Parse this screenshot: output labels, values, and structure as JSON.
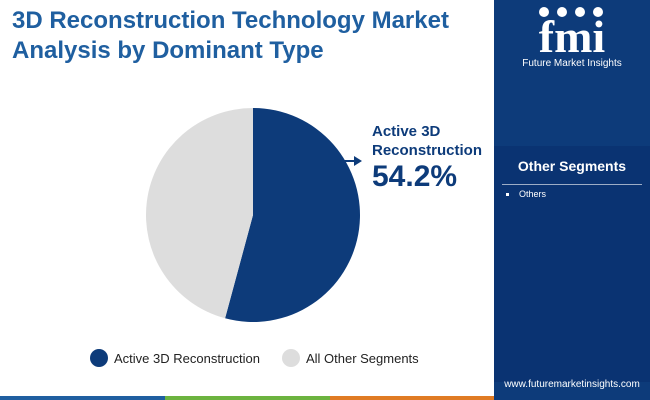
{
  "title_lines": [
    "3D Reconstruction Technology Market",
    "Analysis by Dominant Type"
  ],
  "chart_data": {
    "type": "pie",
    "slices": [
      {
        "label": "Active 3D Reconstruction",
        "value": 54.2,
        "color": "#0d3b7a"
      },
      {
        "label": "All Other Segments",
        "value": 45.8,
        "color": "#dddddd"
      }
    ],
    "callout": {
      "label_lines": [
        "Active 3D",
        "Reconstruction"
      ],
      "value": "54.2%"
    }
  },
  "legend": [
    {
      "label": "Active 3D Reconstruction",
      "color": "#0d3b7a"
    },
    {
      "label": "All Other Segments",
      "color": "#dddddd"
    }
  ],
  "sidebar": {
    "brand": "Future Market Insights",
    "logo_letters": "fmi",
    "segments_title": "Other Segments",
    "segments": [
      "Others"
    ],
    "url": "www.futuremarketinsights.com",
    "background": "#0d3b7a"
  },
  "colors": {
    "title": "#1f5fa0",
    "accent": "#0d3b7a",
    "bottom_bar": [
      "#1f5fa0",
      "#6cb33f",
      "#e07b24",
      "#7a2f8f",
      "#0d3b7a"
    ]
  }
}
